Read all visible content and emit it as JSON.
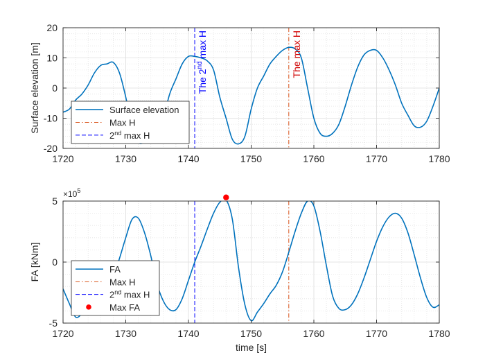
{
  "chart_data": [
    {
      "type": "line",
      "ylabel": "Surface elevation [m]",
      "xlim": [
        1720,
        1780
      ],
      "ylim": [
        -20,
        20
      ],
      "xticks": [
        1720,
        1730,
        1740,
        1750,
        1760,
        1770,
        1780
      ],
      "xtick_labels": [
        "1720",
        "1730",
        "1740",
        "1750",
        "1760",
        "1770",
        "1780"
      ],
      "yticks": [
        -20,
        -10,
        0,
        10,
        20
      ],
      "ytick_labels": [
        "-20",
        "-10",
        "0",
        "10",
        "20"
      ],
      "grid": true,
      "minor_grid": true,
      "legend_position": "bottom-left",
      "series": [
        {
          "name": "Surface elevation",
          "color": "#0072bd",
          "x": [
            1720,
            1721,
            1722,
            1723,
            1724,
            1725,
            1726,
            1727,
            1728,
            1729,
            1730,
            1731,
            1732,
            1733,
            1734,
            1735,
            1736,
            1737,
            1738,
            1739,
            1740,
            1741,
            1742,
            1743,
            1744,
            1745,
            1746,
            1747,
            1748,
            1749,
            1750,
            1751,
            1752,
            1753,
            1754,
            1755,
            1756,
            1757,
            1758,
            1759,
            1760,
            1761,
            1762,
            1763,
            1764,
            1765,
            1766,
            1767,
            1768,
            1769,
            1770,
            1771,
            1772,
            1773,
            1774,
            1775,
            1776,
            1777,
            1778,
            1779,
            1780
          ],
          "y": [
            -8,
            -7,
            -4,
            -2,
            1,
            5,
            7.5,
            8,
            8.5,
            5,
            -3,
            -13,
            -18,
            -18,
            -17,
            -16,
            -10,
            -2,
            3,
            8,
            10.5,
            10.5,
            10,
            9,
            6,
            -3,
            -10,
            -17,
            -18.5,
            -16,
            -7,
            0,
            4,
            8,
            10.5,
            12.5,
            13.5,
            13,
            10,
            0,
            -10,
            -15,
            -16,
            -15,
            -12,
            -6,
            1,
            7,
            11,
            12.5,
            12.5,
            10,
            6,
            1,
            -5,
            -9,
            -12.5,
            -13,
            -11,
            -6,
            0
          ]
        }
      ],
      "lines": [
        {
          "name": "Max H",
          "x": 1756,
          "color": "#d95319",
          "dash": "dashdot",
          "label": "The max H",
          "label_color": "#d00000"
        },
        {
          "name": "2nd max H",
          "x": 1741,
          "color": "#0000ff",
          "dash": "dash",
          "label_main": "The 2",
          "label_sup": "nd",
          "label_tail": " max H",
          "label_color": "#0000ff"
        }
      ],
      "legend": [
        {
          "text": "Surface elevation",
          "sup": "",
          "tail": "",
          "style": "line",
          "color": "#0072bd"
        },
        {
          "text": "Max H",
          "sup": "",
          "tail": "",
          "style": "dashdot",
          "color": "#d95319"
        },
        {
          "text": "2",
          "sup": "nd",
          "tail": " max H",
          "style": "dash",
          "color": "#0000ff"
        }
      ]
    },
    {
      "type": "line",
      "xlabel": "time [s]",
      "ylabel": "FA [kNm]",
      "exponent_base": "×10",
      "exponent_power": "5",
      "xlim": [
        1720,
        1780
      ],
      "ylim": [
        -5,
        5
      ],
      "xticks": [
        1720,
        1730,
        1740,
        1750,
        1760,
        1770,
        1780
      ],
      "xtick_labels": [
        "1720",
        "1730",
        "1740",
        "1750",
        "1760",
        "1770",
        "1780"
      ],
      "yticks": [
        -5,
        0,
        5
      ],
      "ytick_labels": [
        "-5",
        "0",
        "5"
      ],
      "grid": true,
      "minor_grid": true,
      "legend_position": "bottom-left",
      "series": [
        {
          "name": "FA",
          "color": "#0072bd",
          "x": [
            1720,
            1721,
            1722,
            1723,
            1724,
            1725,
            1726,
            1727,
            1728,
            1729,
            1730,
            1731,
            1732,
            1733,
            1734,
            1735,
            1736,
            1737,
            1738,
            1739,
            1740,
            1741,
            1742,
            1743,
            1744,
            1745,
            1746,
            1747,
            1748,
            1749,
            1750,
            1751,
            1752,
            1753,
            1754,
            1755,
            1756,
            1757,
            1758,
            1759,
            1760,
            1761,
            1762,
            1763,
            1764,
            1765,
            1766,
            1767,
            1768,
            1769,
            1770,
            1771,
            1772,
            1773,
            1774,
            1775,
            1776,
            1777,
            1778,
            1779,
            1780
          ],
          "y": [
            -2.2,
            -3.4,
            -4.5,
            -4.2,
            -3.2,
            -2.6,
            -2.4,
            -2.2,
            -1.2,
            0.3,
            2.0,
            3.5,
            3.6,
            2.4,
            0.5,
            -1.8,
            -3.2,
            -3.9,
            -3.9,
            -3.0,
            -1.5,
            0,
            1.3,
            2.7,
            4.0,
            4.9,
            5.1,
            3.5,
            -0.5,
            -3.5,
            -4.8,
            -4.1,
            -3.4,
            -2.6,
            -1.9,
            -0.8,
            0.8,
            2.5,
            4.0,
            5.0,
            4.6,
            2.5,
            -0.3,
            -2.8,
            -3.8,
            -3.9,
            -3.5,
            -2.6,
            -1.3,
            0.2,
            1.7,
            2.9,
            3.7,
            4.0,
            3.6,
            2.4,
            0.6,
            -1.3,
            -2.9,
            -3.7,
            -3.5
          ]
        }
      ],
      "lines": [
        {
          "name": "Max H",
          "x": 1756,
          "color": "#d95319",
          "dash": "dashdot"
        },
        {
          "name": "2nd max H",
          "x": 1741,
          "color": "#0000ff",
          "dash": "dash"
        }
      ],
      "points": [
        {
          "name": "Max FA",
          "x": 1746,
          "y": 5.3,
          "color": "#ff0000"
        }
      ],
      "legend": [
        {
          "text": "FA",
          "sup": "",
          "tail": "",
          "style": "line",
          "color": "#0072bd"
        },
        {
          "text": "Max H",
          "sup": "",
          "tail": "",
          "style": "dashdot",
          "color": "#d95319"
        },
        {
          "text": "2",
          "sup": "nd",
          "tail": " max H",
          "style": "dash",
          "color": "#0000ff"
        },
        {
          "text": "Max FA",
          "sup": "",
          "tail": "",
          "style": "dot",
          "color": "#ff0000"
        }
      ]
    }
  ]
}
